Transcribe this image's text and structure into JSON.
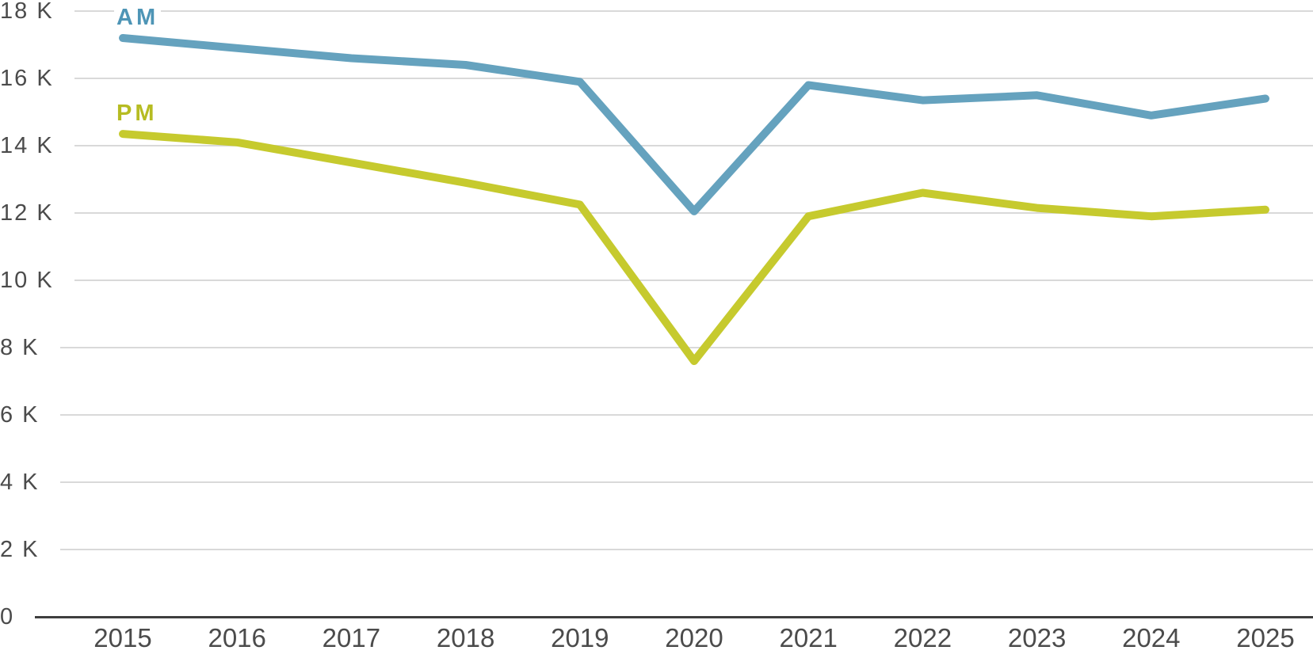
{
  "chart_data": {
    "type": "line",
    "x": [
      2015,
      2016,
      2017,
      2018,
      2019,
      2020,
      2021,
      2022,
      2023,
      2024,
      2025
    ],
    "series": [
      {
        "name": "AM",
        "color": "#65a2be",
        "label_color": "#4e95b6",
        "values": [
          17200,
          16900,
          16600,
          16400,
          15900,
          12050,
          15800,
          15350,
          15500,
          14900,
          15400
        ]
      },
      {
        "name": "PM",
        "color": "#c6ca2e",
        "label_color": "#b6bc22",
        "values": [
          14350,
          14100,
          13500,
          12900,
          12250,
          7600,
          11900,
          12600,
          12150,
          11900,
          12100
        ]
      }
    ],
    "title": "",
    "xlabel": "",
    "ylabel": "",
    "yticks": [
      {
        "label": "0",
        "value": 0
      },
      {
        "label": "2 K",
        "value": 2000
      },
      {
        "label": "4 K",
        "value": 4000
      },
      {
        "label": "6 K",
        "value": 6000
      },
      {
        "label": "8 K",
        "value": 8000
      },
      {
        "label": "10 K",
        "value": 10000
      },
      {
        "label": "12 K",
        "value": 12000
      },
      {
        "label": "14 K",
        "value": 14000
      },
      {
        "label": "16 K",
        "value": 16000
      },
      {
        "label": "18 K",
        "value": 18000
      }
    ],
    "ylim": [
      0,
      18000
    ],
    "xlim": [
      2015,
      2025
    ],
    "grid": "horizontal-only",
    "legend_position": "inline-above-line-start",
    "line_width": 10
  },
  "colors": {
    "background": "#ffffff",
    "grid_line": "#d9d9d9",
    "axis_line": "#3e3e3e",
    "tick_text": "#4b4b4b"
  }
}
